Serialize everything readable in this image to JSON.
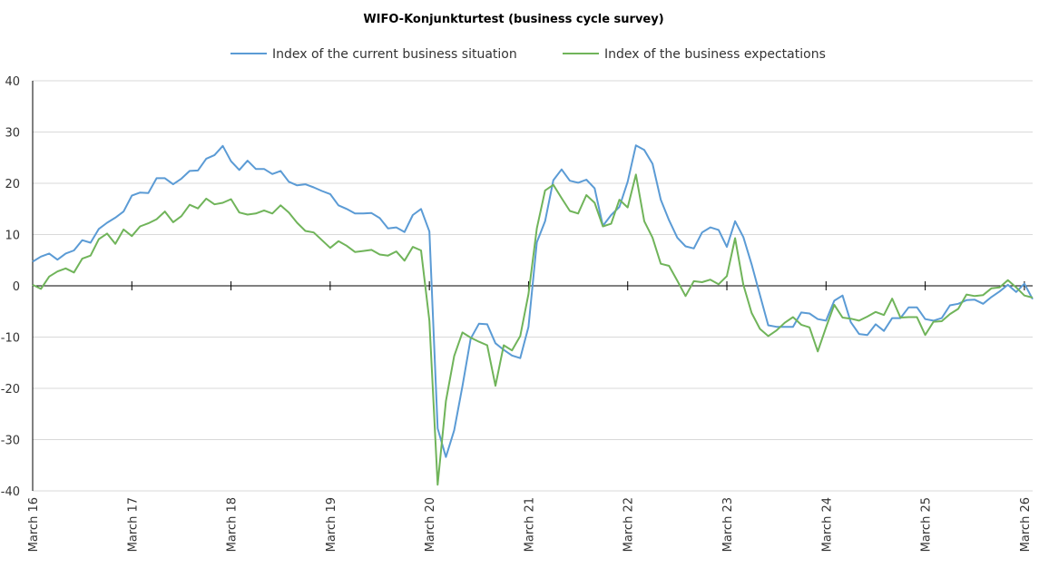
{
  "chart_data": {
    "type": "line",
    "title": "WIFO-Konjunkturtest (business cycle survey)",
    "xlabel": "",
    "ylabel": "",
    "ylim": [
      -40,
      40
    ],
    "yticks": [
      40,
      30,
      20,
      10,
      0,
      -10,
      -20,
      -30,
      -40
    ],
    "xticks": [
      "March 16",
      "March 17",
      "March 18",
      "March 19",
      "March 20",
      "March 21",
      "March 22",
      "March 23",
      "March 24",
      "March 25",
      "March 26"
    ],
    "grid": true,
    "legend_position": "top",
    "series": [
      {
        "name": "Index of the current business situation",
        "color": "#5b9bd5",
        "values": [
          4.7,
          5.7,
          6.3,
          5.1,
          6.3,
          6.9,
          8.9,
          8.4,
          11.1,
          12.3,
          13.3,
          14.5,
          17.6,
          18.2,
          18.1,
          21.0,
          21.0,
          19.8,
          20.9,
          22.4,
          22.5,
          24.8,
          25.5,
          27.3,
          24.3,
          22.6,
          24.4,
          22.8,
          22.8,
          21.8,
          22.4,
          20.3,
          19.6,
          19.8,
          19.2,
          18.5,
          17.9,
          15.7,
          15.0,
          14.1,
          14.1,
          14.2,
          13.2,
          11.2,
          11.4,
          10.5,
          13.8,
          15.0,
          10.6,
          -27.8,
          -33.4,
          -28.2,
          -19.6,
          -10.3,
          -7.4,
          -7.5,
          -11.2,
          -12.5,
          -13.6,
          -14.1,
          -8.0,
          8.5,
          12.6,
          20.6,
          22.7,
          20.5,
          20.1,
          20.7,
          19.0,
          11.7,
          13.8,
          15.4,
          20.3,
          27.4,
          26.5,
          23.8,
          16.8,
          12.8,
          9.4,
          7.7,
          7.3,
          10.4,
          11.4,
          10.9,
          7.6,
          12.6,
          9.5,
          4.2,
          -1.8,
          -7.7,
          -8.0,
          -8.0,
          -8.0,
          -5.2,
          -5.4,
          -6.5,
          -6.8,
          -2.9,
          -1.9,
          -7.1,
          -9.4,
          -9.6,
          -7.5,
          -8.8,
          -6.3,
          -6.3,
          -4.2,
          -4.2,
          -6.5,
          -6.8,
          -6.3,
          -3.8,
          -3.5,
          -2.8,
          -2.7,
          -3.5,
          -2.2,
          -1.1,
          0.2,
          -1.2,
          0.4,
          -2.6
        ]
      },
      {
        "name": "Index of the business expectations",
        "color": "#70b45a",
        "values": [
          0.2,
          -0.6,
          1.8,
          2.8,
          3.4,
          2.6,
          5.3,
          5.9,
          9.1,
          10.2,
          8.2,
          11.0,
          9.7,
          11.6,
          12.2,
          13.0,
          14.5,
          12.4,
          13.6,
          15.8,
          15.1,
          17.0,
          15.9,
          16.2,
          16.9,
          14.3,
          13.9,
          14.1,
          14.7,
          14.1,
          15.7,
          14.3,
          12.3,
          10.7,
          10.4,
          8.9,
          7.4,
          8.7,
          7.8,
          6.6,
          6.8,
          7.0,
          6.1,
          5.9,
          6.7,
          4.9,
          7.6,
          6.9,
          -6.8,
          -38.8,
          -22.5,
          -13.7,
          -9.1,
          -10.1,
          -10.9,
          -11.6,
          -19.5,
          -11.6,
          -12.6,
          -9.8,
          -1.6,
          11.2,
          18.6,
          19.7,
          17.1,
          14.6,
          14.1,
          17.7,
          16.2,
          11.6,
          12.1,
          16.8,
          15.3,
          21.7,
          12.6,
          9.4,
          4.3,
          3.9,
          1.0,
          -2.0,
          0.9,
          0.7,
          1.2,
          0.3,
          1.9,
          9.3,
          0.2,
          -5.3,
          -8.4,
          -9.8,
          -8.7,
          -7.2,
          -6.1,
          -7.6,
          -8.1,
          -12.8,
          -8.1,
          -3.7,
          -6.2,
          -6.4,
          -6.8,
          -6.0,
          -5.1,
          -5.7,
          -2.5,
          -6.2,
          -6.1,
          -6.1,
          -9.6,
          -7.0,
          -6.9,
          -5.5,
          -4.5,
          -1.7,
          -2.0,
          -1.8,
          -0.5,
          -0.3,
          1.1,
          -0.3,
          -1.9,
          -2.3
        ]
      }
    ]
  }
}
